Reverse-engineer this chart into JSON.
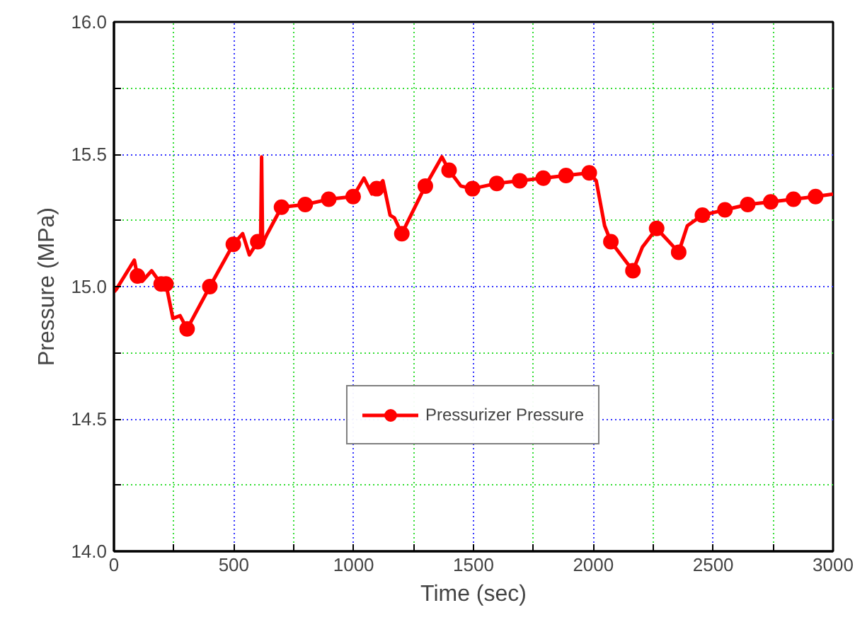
{
  "chart_data": {
    "type": "line",
    "xlabel": "Time (sec)",
    "ylabel": "Pressure (MPa)",
    "xlim": [
      0,
      3000
    ],
    "ylim": [
      14.0,
      16.0
    ],
    "xticks": [
      0,
      {
        "value": 250,
        "label": null
      },
      500,
      {
        "value": 750,
        "label": null
      },
      1000,
      {
        "value": 1250,
        "label": null
      },
      1500,
      {
        "value": 1750,
        "label": null
      },
      2000,
      {
        "value": 2250,
        "label": null
      },
      2500,
      {
        "value": 2750,
        "label": null
      },
      3000
    ],
    "yticks": [
      {
        "value": 14.0,
        "label": "14.0"
      },
      {
        "value": 14.25,
        "label": null
      },
      {
        "value": 14.5,
        "label": "14.5"
      },
      {
        "value": 14.75,
        "label": null
      },
      {
        "value": 15.0,
        "label": "15.0"
      },
      {
        "value": 15.25,
        "label": null
      },
      {
        "value": 15.5,
        "label": "15.5"
      },
      {
        "value": 15.75,
        "label": null
      },
      {
        "value": 16.0,
        "label": "16.0"
      }
    ],
    "grid": true,
    "legend": "bottom",
    "line_style": "solid",
    "series": [
      {
        "name": "Pressurizer Pressure",
        "color": "#ff0000",
        "marker": "none",
        "x": [
          0,
          10,
          85,
          98,
          118,
          157,
          197,
          217,
          246,
          276,
          305,
          400,
          498,
          537,
          565,
          600,
          612,
          616,
          620,
          624,
          640,
          699,
          798,
          896,
          998,
          1043,
          1076,
          1096,
          1122,
          1152,
          1170,
          1201,
          1299,
          1368,
          1398,
          1447,
          1496,
          1597,
          1693,
          1791,
          1886,
          1983,
          2012,
          2047,
          2073,
          2165,
          2205,
          2264,
          2356,
          2392,
          2455,
          2549,
          2644,
          2740,
          2835,
          2927,
          3000
        ],
        "values": [
          14.98,
          14.99,
          15.1,
          15.04,
          15.02,
          15.06,
          15.01,
          15.01,
          14.88,
          14.89,
          14.84,
          15.0,
          15.16,
          15.2,
          15.12,
          15.17,
          15.18,
          15.49,
          15.17,
          15.17,
          15.2,
          15.3,
          15.31,
          15.33,
          15.34,
          15.41,
          15.35,
          15.37,
          15.4,
          15.27,
          15.26,
          15.2,
          15.38,
          15.49,
          15.44,
          15.38,
          15.37,
          15.39,
          15.4,
          15.41,
          15.42,
          15.43,
          15.4,
          15.23,
          15.17,
          15.06,
          15.15,
          15.22,
          15.13,
          15.23,
          15.27,
          15.29,
          15.31,
          15.32,
          15.33,
          15.34,
          15.35
        ]
      },
      {
        "color": "#ff0000",
        "type": "scatter",
        "marker": "circle",
        "x": [
          98,
          197,
          217,
          305,
          400,
          498,
          600,
          699,
          798,
          896,
          998,
          1096,
          1201,
          1299,
          1398,
          1496,
          1597,
          1693,
          1791,
          1886,
          1983,
          2073,
          2165,
          2264,
          2356,
          2455,
          2549,
          2644,
          2740,
          2835,
          2927
        ],
        "values": [
          15.04,
          15.01,
          15.01,
          14.84,
          15.0,
          15.16,
          15.17,
          15.3,
          15.31,
          15.33,
          15.34,
          15.37,
          15.2,
          15.38,
          15.44,
          15.37,
          15.39,
          15.4,
          15.41,
          15.42,
          15.43,
          15.17,
          15.06,
          15.22,
          15.13,
          15.27,
          15.29,
          15.31,
          15.32,
          15.33,
          15.34
        ]
      }
    ]
  }
}
